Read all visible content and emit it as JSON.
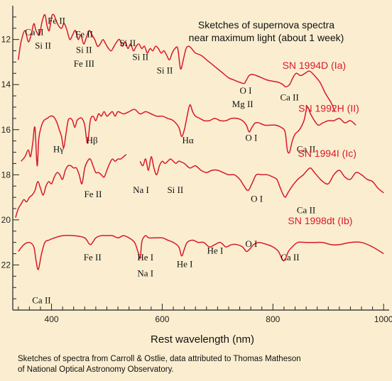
{
  "chart_data": {
    "type": "line",
    "title_lines": [
      "Sketches of supernova spectra",
      "near maximum light (about 1 week)"
    ],
    "xlabel": "Rest wavelength (nm)",
    "ylabel": "",
    "xlim": [
      330,
      1010
    ],
    "ylim": [
      24,
      10.5
    ],
    "x_ticks": [
      400,
      600,
      800,
      1000
    ],
    "y_ticks": [
      12,
      14,
      16,
      18,
      20,
      22
    ],
    "series": [
      {
        "name": "SN 1994D (Ia)",
        "color": "#d8182a",
        "x": [
          340,
          345,
          352,
          358,
          363,
          368,
          372,
          378,
          383,
          388,
          392,
          396,
          400,
          404,
          409,
          413,
          418,
          423,
          428,
          433,
          438,
          443,
          448,
          453,
          458,
          463,
          468,
          473,
          478,
          483,
          488,
          493,
          498,
          503,
          508,
          513,
          518,
          523,
          528,
          533,
          538,
          543,
          548,
          553,
          558,
          563,
          568,
          573,
          578,
          583,
          588,
          593,
          598,
          603,
          608,
          613,
          618,
          623,
          628,
          633,
          638,
          643,
          648,
          653,
          660,
          670,
          680,
          690,
          700,
          710,
          720,
          730,
          740,
          748,
          752,
          757,
          762,
          770,
          780,
          790,
          800,
          810,
          818,
          823,
          830,
          836,
          842,
          850,
          858,
          866,
          875,
          885,
          895,
          905,
          912
        ],
        "y": [
          12.9,
          12.1,
          11.6,
          12.1,
          11.8,
          11.3,
          11.6,
          11.8,
          11.2,
          10.9,
          11.4,
          11.6,
          11.0,
          10.9,
          11.2,
          11.4,
          11.5,
          11.3,
          11.6,
          12.0,
          11.8,
          11.6,
          12.0,
          11.8,
          12.2,
          11.9,
          11.6,
          11.8,
          12.0,
          12.3,
          12.2,
          12.0,
          12.2,
          12.4,
          12.5,
          12.3,
          12.1,
          12.0,
          12.3,
          12.1,
          12.4,
          12.2,
          12.5,
          12.3,
          12.2,
          12.4,
          12.3,
          12.6,
          12.4,
          12.5,
          12.3,
          12.4,
          12.6,
          12.5,
          12.7,
          12.9,
          12.6,
          12.4,
          12.4,
          13.3,
          12.9,
          12.4,
          12.3,
          12.4,
          12.6,
          12.7,
          12.9,
          13.1,
          13.3,
          13.5,
          13.7,
          13.8,
          13.9,
          13.95,
          13.8,
          13.6,
          13.55,
          13.6,
          13.7,
          13.8,
          13.85,
          13.9,
          14.0,
          14.1,
          14.0,
          13.7,
          13.5,
          13.6,
          13.5,
          13.4,
          13.6,
          13.9,
          14.4,
          14.8,
          15.2
        ]
      },
      {
        "name": "SN 1992H (II)",
        "color": "#d8182a",
        "x": [
          345,
          352,
          358,
          362,
          366,
          370,
          374,
          377,
          381,
          386,
          392,
          398,
          402,
          406,
          410,
          414,
          418,
          422,
          426,
          430,
          434,
          438,
          442,
          446,
          450,
          455,
          460,
          465,
          470,
          475,
          480,
          485,
          490,
          495,
          500,
          505,
          510,
          515,
          520,
          530,
          540,
          550,
          560,
          570,
          580,
          590,
          600,
          610,
          620,
          630,
          635,
          640,
          645,
          650,
          655,
          660,
          668,
          676,
          685,
          695,
          705,
          715,
          725,
          735,
          745,
          752,
          757,
          762,
          768,
          775,
          785,
          795,
          805,
          815,
          822,
          826,
          830,
          835,
          840,
          848,
          856,
          862,
          868,
          875,
          882,
          890,
          900,
          910,
          920,
          930,
          940,
          950
        ],
        "y": [
          17.4,
          17.2,
          16.9,
          17.2,
          16.6,
          15.9,
          17.6,
          16.4,
          15.9,
          15.6,
          15.5,
          15.4,
          15.4,
          15.5,
          15.7,
          16.0,
          16.3,
          16.8,
          16.2,
          15.6,
          15.5,
          15.6,
          15.9,
          15.6,
          15.5,
          15.5,
          15.8,
          16.6,
          15.6,
          15.4,
          15.6,
          15.3,
          15.4,
          15.2,
          15.4,
          15.3,
          15.2,
          15.4,
          15.2,
          15.3,
          15.2,
          15.1,
          15.3,
          15.2,
          15.3,
          15.4,
          15.4,
          15.5,
          15.6,
          15.9,
          16.3,
          16.0,
          15.4,
          14.9,
          15.2,
          15.4,
          15.5,
          15.6,
          15.6,
          15.5,
          15.6,
          15.6,
          15.5,
          15.5,
          15.6,
          15.8,
          16.1,
          15.9,
          15.7,
          15.7,
          15.8,
          15.8,
          15.8,
          15.9,
          16.1,
          16.9,
          17.0,
          16.5,
          16.2,
          16.0,
          15.6,
          15.0,
          15.3,
          15.6,
          15.8,
          15.7,
          15.6,
          15.6,
          15.5,
          15.7,
          15.6,
          15.8
        ]
      },
      {
        "name": "SN 1994I (Ic)",
        "color": "#d8182a",
        "x": [
          335,
          340,
          345,
          350,
          355,
          360,
          365,
          370,
          375,
          380,
          385,
          390,
          395,
          400,
          405,
          410,
          415,
          420,
          425,
          430,
          435,
          440,
          445,
          450,
          455,
          460,
          465,
          470,
          475,
          480,
          485,
          490,
          495,
          500,
          505,
          510,
          515,
          520,
          525,
          530,
          535
        ],
        "y": [
          19.9,
          19.5,
          19.3,
          19.1,
          19.2,
          19.0,
          18.9,
          18.7,
          18.3,
          18.6,
          18.9,
          18.5,
          18.3,
          18.4,
          18.1,
          17.9,
          18.0,
          18.2,
          17.8,
          17.6,
          17.6,
          17.7,
          17.7,
          18.0,
          18.4,
          17.7,
          17.4,
          17.3,
          17.6,
          17.9,
          17.9,
          18.0,
          18.1,
          17.8,
          17.5,
          17.3,
          17.4,
          17.3,
          17.3,
          17.2,
          17.1
        ]
      },
      {
        "name": "",
        "color": "#d8182a",
        "x": [
          560,
          565,
          570,
          575,
          580,
          585,
          590,
          595,
          600,
          605,
          610,
          615,
          620,
          625,
          630,
          640,
          650,
          660,
          670,
          680,
          690,
          700,
          710,
          720,
          730,
          740,
          748,
          755,
          762,
          770,
          780,
          790,
          800,
          807,
          812,
          817,
          822,
          827,
          835,
          845,
          855,
          862,
          868,
          875,
          882,
          890,
          900,
          910,
          920,
          930,
          940,
          950,
          960,
          970,
          980,
          990,
          1000
        ],
        "y": [
          17.4,
          17.6,
          17.3,
          17.8,
          17.2,
          17.7,
          18.0,
          17.6,
          17.4,
          17.5,
          17.4,
          17.3,
          17.4,
          17.5,
          17.4,
          17.5,
          17.7,
          17.6,
          17.8,
          17.9,
          17.8,
          17.8,
          17.9,
          18.0,
          18.0,
          18.2,
          18.5,
          18.7,
          18.4,
          18.0,
          18.0,
          18.0,
          18.1,
          18.2,
          18.5,
          18.8,
          19.0,
          18.8,
          18.5,
          18.2,
          18.0,
          17.8,
          17.7,
          17.9,
          18.1,
          18.3,
          18.4,
          18.0,
          17.8,
          18.1,
          18.2,
          17.9,
          18.0,
          18.2,
          18.3,
          18.6,
          18.8
        ]
      },
      {
        "name": "SN 1998dt (Ib)",
        "color": "#d8182a",
        "x": [
          340,
          350,
          360,
          368,
          372,
          376,
          382,
          388,
          395,
          405,
          420,
          440,
          460,
          470,
          480,
          490,
          500,
          510,
          520,
          530,
          540,
          550,
          556,
          560,
          563,
          566,
          570,
          576,
          585,
          600,
          610,
          620,
          630,
          635,
          640,
          645,
          655,
          665,
          675,
          685,
          695,
          705,
          715,
          725,
          735,
          745,
          752,
          758,
          765,
          775,
          790,
          800,
          810,
          818,
          823,
          828,
          835,
          845,
          860,
          875,
          890,
          905,
          920,
          940,
          960,
          980,
          1000
        ],
        "y": [
          21.4,
          21.1,
          21.0,
          21.2,
          21.8,
          22.2,
          21.5,
          21.0,
          20.9,
          20.8,
          20.7,
          20.7,
          20.8,
          21.1,
          20.8,
          20.7,
          20.7,
          20.7,
          20.8,
          20.7,
          20.8,
          21.0,
          21.4,
          21.7,
          21.0,
          20.8,
          20.7,
          20.8,
          20.8,
          20.8,
          20.9,
          21.0,
          21.2,
          21.6,
          21.3,
          21.0,
          20.9,
          21.0,
          21.0,
          21.2,
          21.1,
          21.0,
          21.2,
          21.1,
          21.1,
          21.2,
          21.4,
          21.3,
          21.1,
          21.0,
          21.1,
          21.2,
          21.4,
          21.8,
          21.7,
          21.4,
          21.2,
          21.0,
          21.0,
          21.0,
          21.0,
          21.1,
          21.1,
          21.0,
          21.0,
          21.2,
          21.5
        ]
      }
    ],
    "sn_labels": [
      {
        "text": "SN 1994D (Ia)",
        "x": 817,
        "y": 13.3
      },
      {
        "text": "SN 1992H (II)",
        "x": 846,
        "y": 15.2
      },
      {
        "text": "SN 1994I (Ic)",
        "x": 845,
        "y": 17.2
      },
      {
        "text": "SN 1998dt (Ib)",
        "x": 827,
        "y": 20.2
      }
    ],
    "line_labels": [
      {
        "text": "Ca II",
        "x": 352,
        "y": 11.8
      },
      {
        "text": "Fe II",
        "x": 393,
        "y": 11.3
      },
      {
        "text": "Si II",
        "x": 370,
        "y": 12.4
      },
      {
        "text": "Fe II",
        "x": 443,
        "y": 11.9
      },
      {
        "text": "Si II",
        "x": 444,
        "y": 12.6
      },
      {
        "text": "Fe III",
        "x": 440,
        "y": 13.2
      },
      {
        "text": "Si II",
        "x": 523,
        "y": 12.3
      },
      {
        "text": "Si II",
        "x": 546,
        "y": 12.9
      },
      {
        "text": "Si II",
        "x": 590,
        "y": 13.5
      },
      {
        "text": "O I",
        "x": 740,
        "y": 14.4
      },
      {
        "text": "Mg II",
        "x": 726,
        "y": 15.0
      },
      {
        "text": "Ca II",
        "x": 813,
        "y": 14.7
      },
      {
        "text": "Hγ",
        "x": 403,
        "y": 17.0
      },
      {
        "text": "Hβ",
        "x": 463,
        "y": 16.6
      },
      {
        "text": "Hα",
        "x": 636,
        "y": 16.6
      },
      {
        "text": "O I",
        "x": 750,
        "y": 16.5
      },
      {
        "text": "Ca II",
        "x": 843,
        "y": 17.0
      },
      {
        "text": "Fe II",
        "x": 459,
        "y": 19.0
      },
      {
        "text": "Na I",
        "x": 547,
        "y": 18.8
      },
      {
        "text": "Si II",
        "x": 609,
        "y": 18.8
      },
      {
        "text": "O I",
        "x": 760,
        "y": 19.2
      },
      {
        "text": "Ca II",
        "x": 843,
        "y": 19.7
      },
      {
        "text": "Fe II",
        "x": 458,
        "y": 21.8
      },
      {
        "text": "He I",
        "x": 555,
        "y": 21.8
      },
      {
        "text": "Na I",
        "x": 555,
        "y": 22.5
      },
      {
        "text": "He I",
        "x": 626,
        "y": 22.1
      },
      {
        "text": "He I",
        "x": 681,
        "y": 21.5
      },
      {
        "text": "O I",
        "x": 750,
        "y": 21.2
      },
      {
        "text": "Ca II",
        "x": 814,
        "y": 21.8
      },
      {
        "text": "Ca II",
        "x": 365,
        "y": 23.7
      }
    ]
  },
  "credit_lines": [
    "Sketches of spectra from Carroll & Ostlie, data attributed to Thomas Matheson",
    "of National Optical Astronomy Observatory."
  ]
}
